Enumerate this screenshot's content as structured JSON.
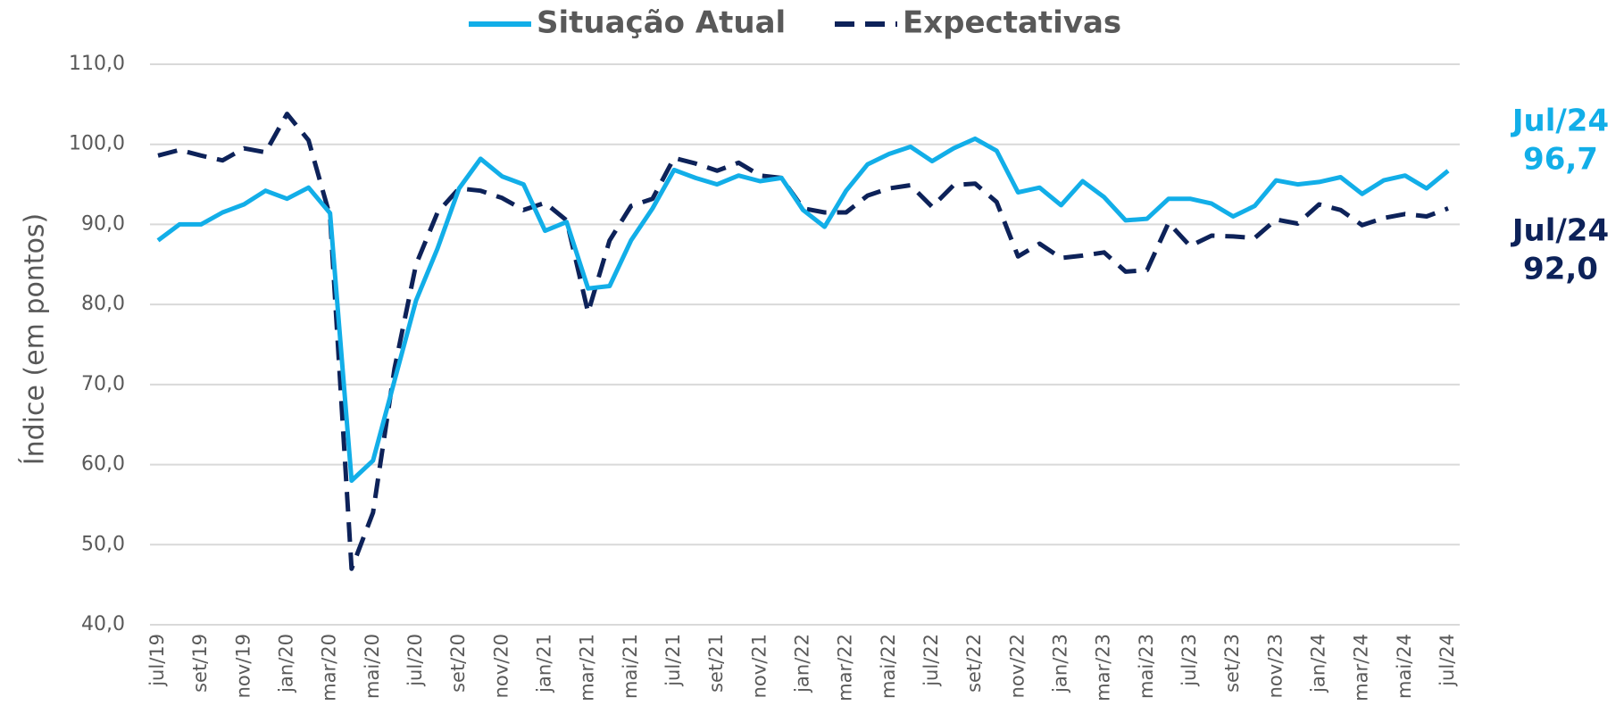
{
  "chart_data": {
    "type": "line",
    "y_label": "Índice (em pontos)",
    "categories": [
      "jul/19",
      null,
      "set/19",
      null,
      "nov/19",
      null,
      "jan/20",
      null,
      "mar/20",
      null,
      "mai/20",
      null,
      "jul/20",
      null,
      "set/20",
      null,
      "nov/20",
      null,
      "jan/21",
      null,
      "mar/21",
      null,
      "mai/21",
      null,
      "jul/21",
      null,
      "set/21",
      null,
      "nov/21",
      null,
      "jan/22",
      null,
      "mar/22",
      null,
      "mai/22",
      null,
      "jul/22",
      null,
      "set/22",
      null,
      "nov/22",
      null,
      "jan/23",
      null,
      "mar/23",
      null,
      "mai/23",
      null,
      "jul/23",
      null,
      "set/23",
      null,
      "nov/23",
      null,
      "jan/24",
      null,
      "mar/24",
      null,
      "mai/24",
      null,
      "jul/24"
    ],
    "series": [
      {
        "name": "Situação Atual",
        "color": "#12aee8",
        "dash": false,
        "values": [
          88.0,
          90.0,
          90.0,
          91.5,
          92.5,
          94.2,
          93.2,
          94.6,
          91.4,
          58.0,
          60.5,
          70.5,
          80.5,
          87.0,
          94.5,
          98.2,
          96.0,
          95.0,
          89.2,
          90.3,
          82.0,
          82.3,
          88.0,
          92.0,
          96.8,
          95.8,
          95.0,
          96.1,
          95.4,
          95.8,
          91.8,
          89.7,
          94.2,
          97.5,
          98.8,
          99.7,
          97.9,
          99.5,
          100.7,
          99.2,
          94.0,
          94.6,
          92.4,
          95.4,
          93.4,
          90.5,
          90.7,
          93.2,
          93.2,
          92.6,
          91.0,
          92.3,
          95.5,
          95.0,
          95.3,
          95.9,
          93.8,
          95.5,
          96.1,
          94.5,
          96.7
        ]
      },
      {
        "name": "Expectativas",
        "color": "#0d2259",
        "dash": true,
        "values": [
          98.6,
          99.3,
          98.6,
          98.0,
          99.5,
          99.0,
          103.8,
          100.5,
          91.0,
          47.0,
          54.0,
          72.0,
          85.0,
          91.5,
          94.5,
          94.2,
          93.3,
          91.8,
          92.7,
          90.5,
          79.0,
          88.0,
          92.3,
          93.2,
          98.3,
          97.6,
          96.7,
          97.7,
          96.1,
          95.8,
          92.0,
          91.5,
          91.5,
          93.6,
          94.5,
          94.9,
          92.2,
          94.9,
          95.1,
          92.8,
          86.0,
          87.6,
          85.8,
          86.1,
          86.5,
          84.1,
          84.3,
          90.2,
          87.3,
          88.6,
          88.5,
          88.3,
          90.6,
          90.1,
          92.5,
          91.8,
          89.9,
          90.8,
          91.3,
          91.0,
          92.0
        ]
      }
    ],
    "ylim": [
      40,
      110
    ],
    "yticks": [
      {
        "value": 40,
        "label": "40,0"
      },
      {
        "value": 50,
        "label": "50,0"
      },
      {
        "value": 60,
        "label": "60,0"
      },
      {
        "value": 70,
        "label": "70,0"
      },
      {
        "value": 80,
        "label": "80,0"
      },
      {
        "value": 90,
        "label": "90,0"
      },
      {
        "value": 100,
        "label": "100,0"
      },
      {
        "value": 110,
        "label": "110,0"
      }
    ],
    "grid": true,
    "annotations": [
      {
        "lines": [
          "Jul/24",
          "96,7"
        ],
        "color": "#12aee8"
      },
      {
        "lines": [
          "Jul/24",
          "92,0"
        ],
        "color": "#0d2259"
      }
    ]
  }
}
